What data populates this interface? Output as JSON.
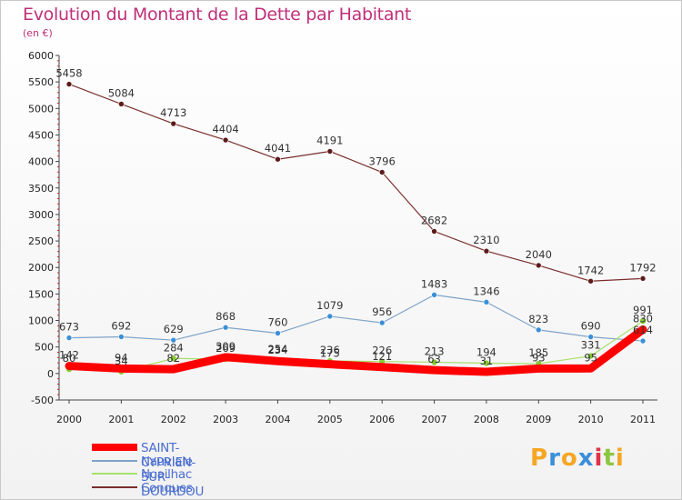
{
  "title": "Evolution du Montant de la Dette par Habitant",
  "subtitle": "(en €)",
  "brand": {
    "text": "Proxiti",
    "letters": [
      "P",
      "r",
      "o",
      "x",
      "i",
      "t",
      "i"
    ],
    "letter_colors": [
      "#f5a623",
      "#3b8fd9",
      "#f5a623",
      "#3b8fd9",
      "#e0334a",
      "#8cc63f",
      "#f5a623"
    ]
  },
  "chart_data": {
    "type": "line",
    "x": [
      "2000",
      "2001",
      "2002",
      "2003",
      "2004",
      "2005",
      "2006",
      "2007",
      "2008",
      "2009",
      "2010",
      "2011"
    ],
    "ylim": [
      -500,
      6000
    ],
    "yticks": [
      "-500",
      "0",
      "500",
      "1000",
      "1500",
      "2000",
      "2500",
      "3000",
      "3500",
      "4000",
      "4500",
      "5000",
      "5500",
      "6000"
    ],
    "grid": false,
    "legend_position": "bottom-left",
    "series": [
      {
        "name": "SAINT-CYPRIEN-SUR-DOURDOU",
        "color": "#ff0000",
        "marker": "#ff0000",
        "values": [
          142,
          94,
          82,
          309,
          234,
          175,
          121,
          63,
          31,
          93,
          95,
          830
        ],
        "labels": [
          "142",
          "94",
          "82",
          "309",
          "234",
          "175",
          "121",
          "63",
          "31",
          "93",
          "95",
          "830"
        ]
      },
      {
        "name": "Nauviale",
        "color": "#7fa3c7",
        "marker": "#3a8fd8",
        "values": [
          673,
          692,
          629,
          868,
          760,
          1079,
          956,
          1483,
          1346,
          823,
          690,
          614
        ],
        "labels": [
          "673",
          "692",
          "629",
          "868",
          "760",
          "1079",
          "956",
          "1483",
          "1346",
          "823",
          "690",
          "614"
        ]
      },
      {
        "name": "Noailhac",
        "color": "#a6e06a",
        "marker": "#88cc33",
        "values": [
          80,
          34,
          284,
          269,
          254,
          236,
          226,
          213,
          194,
          185,
          331,
          991
        ],
        "labels": [
          "80",
          "34",
          "284",
          "269",
          "254",
          "236",
          "226",
          "213",
          "194",
          "185",
          "331",
          "991"
        ]
      },
      {
        "name": "Conques",
        "color": "#7a2e2e",
        "marker": "#5c1a1a",
        "values": [
          5458,
          5084,
          4713,
          4404,
          4041,
          4191,
          3796,
          2682,
          2310,
          2040,
          1742,
          1792
        ],
        "labels": [
          "5458",
          "5084",
          "4713",
          "4404",
          "4041",
          "4191",
          "3796",
          "2682",
          "2310",
          "2040",
          "1742",
          "1792"
        ]
      }
    ]
  }
}
